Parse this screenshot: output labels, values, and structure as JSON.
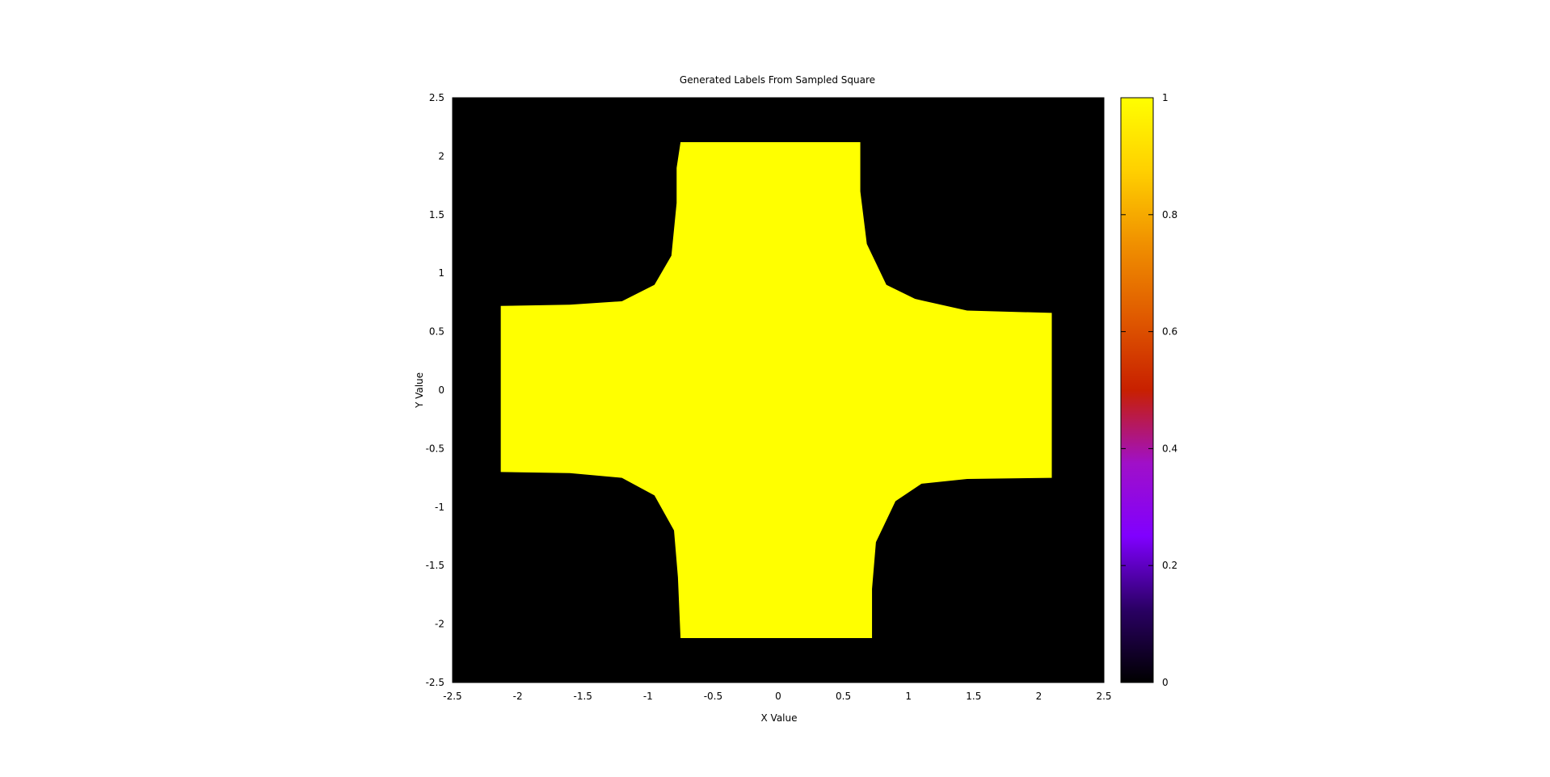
{
  "chart_data": {
    "type": "heatmap",
    "title": "Generated Labels From Sampled Square",
    "xlabel": "X Value",
    "ylabel": "Y Value",
    "xlim": [
      -2.5,
      2.5
    ],
    "ylim": [
      -2.5,
      2.5
    ],
    "x_ticks": [
      "-2.5",
      "-2",
      "-1.5",
      "-1",
      "-0.5",
      "0",
      "0.5",
      "1",
      "1.5",
      "2",
      "2.5"
    ],
    "y_ticks": [
      "-2.5",
      "-2",
      "-1.5",
      "-1",
      "-0.5",
      "0",
      "0.5",
      "1",
      "1.5",
      "2",
      "2.5"
    ],
    "colorbar": {
      "range": [
        0,
        1
      ],
      "ticks": [
        "0",
        "0.2",
        "0.4",
        "0.6",
        "0.8",
        "1"
      ],
      "palette": [
        "#000000",
        "#2a0064",
        "#8000ff",
        "#a010c8",
        "#c82000",
        "#e05a00",
        "#f09000",
        "#ffd000",
        "#ffff00"
      ]
    },
    "background_value": 0,
    "region_value": 1,
    "region": {
      "description_points": [
        [
          -0.75,
          2.12
        ],
        [
          0.63,
          2.12
        ],
        [
          0.63,
          1.7
        ],
        [
          0.68,
          1.25
        ],
        [
          0.83,
          0.9
        ],
        [
          1.05,
          0.78
        ],
        [
          1.45,
          0.68
        ],
        [
          2.1,
          0.66
        ],
        [
          2.1,
          -0.75
        ],
        [
          1.45,
          -0.76
        ],
        [
          1.1,
          -0.8
        ],
        [
          0.9,
          -0.95
        ],
        [
          0.75,
          -1.3
        ],
        [
          0.72,
          -1.7
        ],
        [
          0.72,
          -2.12
        ],
        [
          -0.75,
          -2.12
        ],
        [
          -0.77,
          -1.6
        ],
        [
          -0.8,
          -1.2
        ],
        [
          -0.95,
          -0.9
        ],
        [
          -1.2,
          -0.75
        ],
        [
          -1.6,
          -0.71
        ],
        [
          -2.13,
          -0.7
        ],
        [
          -2.13,
          0.72
        ],
        [
          -1.6,
          0.73
        ],
        [
          -1.2,
          0.76
        ],
        [
          -0.95,
          0.9
        ],
        [
          -0.82,
          1.15
        ],
        [
          -0.78,
          1.6
        ],
        [
          -0.78,
          1.9
        ]
      ]
    },
    "colors": {
      "high": "#ffff00",
      "low": "#000000"
    }
  }
}
